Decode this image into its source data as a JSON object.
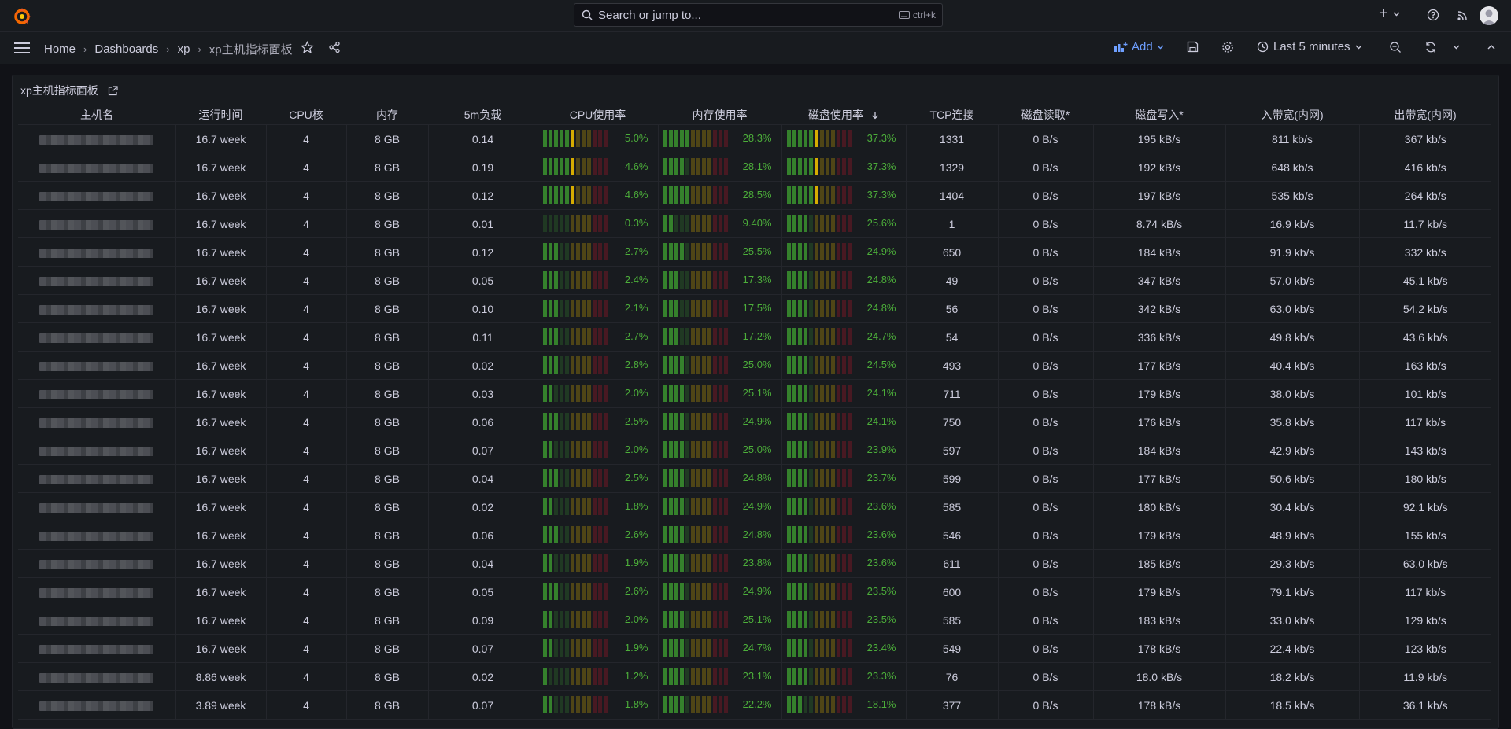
{
  "topbar": {
    "search_placeholder": "Search or jump to...",
    "search_shortcut": "ctrl+k"
  },
  "nav": {
    "breadcrumbs": [
      "Home",
      "Dashboards",
      "xp",
      "xp主机指标面板"
    ],
    "add_label": "Add",
    "time_range": "Last 5 minutes"
  },
  "panel": {
    "title": "xp主机指标面板",
    "columns": [
      "主机名",
      "运行时间",
      "CPU核",
      "内存",
      "5m负载",
      "CPU使用率",
      "内存使用率",
      "磁盘使用率",
      "TCP连接",
      "磁盘读取*",
      "磁盘写入*",
      "入带宽(内网)",
      "出带宽(内网)"
    ],
    "sort_column": "磁盘使用率",
    "sort_direction": "descending",
    "rows": [
      {
        "uptime": "16.7 week",
        "cpu": "4",
        "mem": "8 GB",
        "load": "0.14",
        "cpu_pct": "5.0%",
        "mem_pct": "28.3%",
        "disk_pct": "37.3%",
        "tcp": "1331",
        "disk_read": "0 B/s",
        "disk_write": "195 kB/s",
        "in_bw": "811 kb/s",
        "out_bw": "367 kb/s"
      },
      {
        "uptime": "16.7 week",
        "cpu": "4",
        "mem": "8 GB",
        "load": "0.19",
        "cpu_pct": "4.6%",
        "mem_pct": "28.1%",
        "disk_pct": "37.3%",
        "tcp": "1329",
        "disk_read": "0 B/s",
        "disk_write": "192 kB/s",
        "in_bw": "648 kb/s",
        "out_bw": "416 kb/s"
      },
      {
        "uptime": "16.7 week",
        "cpu": "4",
        "mem": "8 GB",
        "load": "0.12",
        "cpu_pct": "4.6%",
        "mem_pct": "28.5%",
        "disk_pct": "37.3%",
        "tcp": "1404",
        "disk_read": "0 B/s",
        "disk_write": "197 kB/s",
        "in_bw": "535 kb/s",
        "out_bw": "264 kb/s"
      },
      {
        "uptime": "16.7 week",
        "cpu": "4",
        "mem": "8 GB",
        "load": "0.01",
        "cpu_pct": "0.3%",
        "mem_pct": "9.40%",
        "disk_pct": "25.6%",
        "tcp": "1",
        "disk_read": "0 B/s",
        "disk_write": "8.74 kB/s",
        "in_bw": "16.9 kb/s",
        "out_bw": "11.7 kb/s"
      },
      {
        "uptime": "16.7 week",
        "cpu": "4",
        "mem": "8 GB",
        "load": "0.12",
        "cpu_pct": "2.7%",
        "mem_pct": "25.5%",
        "disk_pct": "24.9%",
        "tcp": "650",
        "disk_read": "0 B/s",
        "disk_write": "184 kB/s",
        "in_bw": "91.9 kb/s",
        "out_bw": "332 kb/s"
      },
      {
        "uptime": "16.7 week",
        "cpu": "4",
        "mem": "8 GB",
        "load": "0.05",
        "cpu_pct": "2.4%",
        "mem_pct": "17.3%",
        "disk_pct": "24.8%",
        "tcp": "49",
        "disk_read": "0 B/s",
        "disk_write": "347 kB/s",
        "in_bw": "57.0 kb/s",
        "out_bw": "45.1 kb/s"
      },
      {
        "uptime": "16.7 week",
        "cpu": "4",
        "mem": "8 GB",
        "load": "0.10",
        "cpu_pct": "2.1%",
        "mem_pct": "17.5%",
        "disk_pct": "24.8%",
        "tcp": "56",
        "disk_read": "0 B/s",
        "disk_write": "342 kB/s",
        "in_bw": "63.0 kb/s",
        "out_bw": "54.2 kb/s"
      },
      {
        "uptime": "16.7 week",
        "cpu": "4",
        "mem": "8 GB",
        "load": "0.11",
        "cpu_pct": "2.7%",
        "mem_pct": "17.2%",
        "disk_pct": "24.7%",
        "tcp": "54",
        "disk_read": "0 B/s",
        "disk_write": "336 kB/s",
        "in_bw": "49.8 kb/s",
        "out_bw": "43.6 kb/s"
      },
      {
        "uptime": "16.7 week",
        "cpu": "4",
        "mem": "8 GB",
        "load": "0.02",
        "cpu_pct": "2.8%",
        "mem_pct": "25.0%",
        "disk_pct": "24.5%",
        "tcp": "493",
        "disk_read": "0 B/s",
        "disk_write": "177 kB/s",
        "in_bw": "40.4 kb/s",
        "out_bw": "163 kb/s"
      },
      {
        "uptime": "16.7 week",
        "cpu": "4",
        "mem": "8 GB",
        "load": "0.03",
        "cpu_pct": "2.0%",
        "mem_pct": "25.1%",
        "disk_pct": "24.1%",
        "tcp": "711",
        "disk_read": "0 B/s",
        "disk_write": "179 kB/s",
        "in_bw": "38.0 kb/s",
        "out_bw": "101 kb/s"
      },
      {
        "uptime": "16.7 week",
        "cpu": "4",
        "mem": "8 GB",
        "load": "0.06",
        "cpu_pct": "2.5%",
        "mem_pct": "24.9%",
        "disk_pct": "24.1%",
        "tcp": "750",
        "disk_read": "0 B/s",
        "disk_write": "176 kB/s",
        "in_bw": "35.8 kb/s",
        "out_bw": "117 kb/s"
      },
      {
        "uptime": "16.7 week",
        "cpu": "4",
        "mem": "8 GB",
        "load": "0.07",
        "cpu_pct": "2.0%",
        "mem_pct": "25.0%",
        "disk_pct": "23.9%",
        "tcp": "597",
        "disk_read": "0 B/s",
        "disk_write": "184 kB/s",
        "in_bw": "42.9 kb/s",
        "out_bw": "143 kb/s"
      },
      {
        "uptime": "16.7 week",
        "cpu": "4",
        "mem": "8 GB",
        "load": "0.04",
        "cpu_pct": "2.5%",
        "mem_pct": "24.8%",
        "disk_pct": "23.7%",
        "tcp": "599",
        "disk_read": "0 B/s",
        "disk_write": "177 kB/s",
        "in_bw": "50.6 kb/s",
        "out_bw": "180 kb/s"
      },
      {
        "uptime": "16.7 week",
        "cpu": "4",
        "mem": "8 GB",
        "load": "0.02",
        "cpu_pct": "1.8%",
        "mem_pct": "24.9%",
        "disk_pct": "23.6%",
        "tcp": "585",
        "disk_read": "0 B/s",
        "disk_write": "180 kB/s",
        "in_bw": "30.4 kb/s",
        "out_bw": "92.1 kb/s"
      },
      {
        "uptime": "16.7 week",
        "cpu": "4",
        "mem": "8 GB",
        "load": "0.06",
        "cpu_pct": "2.6%",
        "mem_pct": "24.8%",
        "disk_pct": "23.6%",
        "tcp": "546",
        "disk_read": "0 B/s",
        "disk_write": "179 kB/s",
        "in_bw": "48.9 kb/s",
        "out_bw": "155 kb/s"
      },
      {
        "uptime": "16.7 week",
        "cpu": "4",
        "mem": "8 GB",
        "load": "0.04",
        "cpu_pct": "1.9%",
        "mem_pct": "23.8%",
        "disk_pct": "23.6%",
        "tcp": "611",
        "disk_read": "0 B/s",
        "disk_write": "185 kB/s",
        "in_bw": "29.3 kb/s",
        "out_bw": "63.0 kb/s"
      },
      {
        "uptime": "16.7 week",
        "cpu": "4",
        "mem": "8 GB",
        "load": "0.05",
        "cpu_pct": "2.6%",
        "mem_pct": "24.9%",
        "disk_pct": "23.5%",
        "tcp": "600",
        "disk_read": "0 B/s",
        "disk_write": "179 kB/s",
        "in_bw": "79.1 kb/s",
        "out_bw": "117 kb/s"
      },
      {
        "uptime": "16.7 week",
        "cpu": "4",
        "mem": "8 GB",
        "load": "0.09",
        "cpu_pct": "2.0%",
        "mem_pct": "25.1%",
        "disk_pct": "23.5%",
        "tcp": "585",
        "disk_read": "0 B/s",
        "disk_write": "183 kB/s",
        "in_bw": "33.0 kb/s",
        "out_bw": "129 kb/s"
      },
      {
        "uptime": "16.7 week",
        "cpu": "4",
        "mem": "8 GB",
        "load": "0.07",
        "cpu_pct": "1.9%",
        "mem_pct": "24.7%",
        "disk_pct": "23.4%",
        "tcp": "549",
        "disk_read": "0 B/s",
        "disk_write": "178 kB/s",
        "in_bw": "22.4 kb/s",
        "out_bw": "123 kb/s"
      },
      {
        "uptime": "8.86 week",
        "cpu": "4",
        "mem": "8 GB",
        "load": "0.02",
        "cpu_pct": "1.2%",
        "mem_pct": "23.1%",
        "disk_pct": "23.3%",
        "tcp": "76",
        "disk_read": "0 B/s",
        "disk_write": "18.0 kB/s",
        "in_bw": "18.2 kb/s",
        "out_bw": "11.9 kb/s"
      },
      {
        "uptime": "3.89 week",
        "cpu": "4",
        "mem": "8 GB",
        "load": "0.07",
        "cpu_pct": "1.8%",
        "mem_pct": "22.2%",
        "disk_pct": "18.1%",
        "tcp": "377",
        "disk_read": "0 B/s",
        "disk_write": "178 kB/s",
        "in_bw": "18.5 kb/s",
        "out_bw": "36.1 kb/s"
      }
    ]
  },
  "colors": {
    "gauge_green": "#37872d",
    "gauge_yellow": "#e0b400",
    "gauge_red": "#c4162a",
    "gauge_value_text": "#4cae3a",
    "add_accent": "#6e9fff"
  }
}
